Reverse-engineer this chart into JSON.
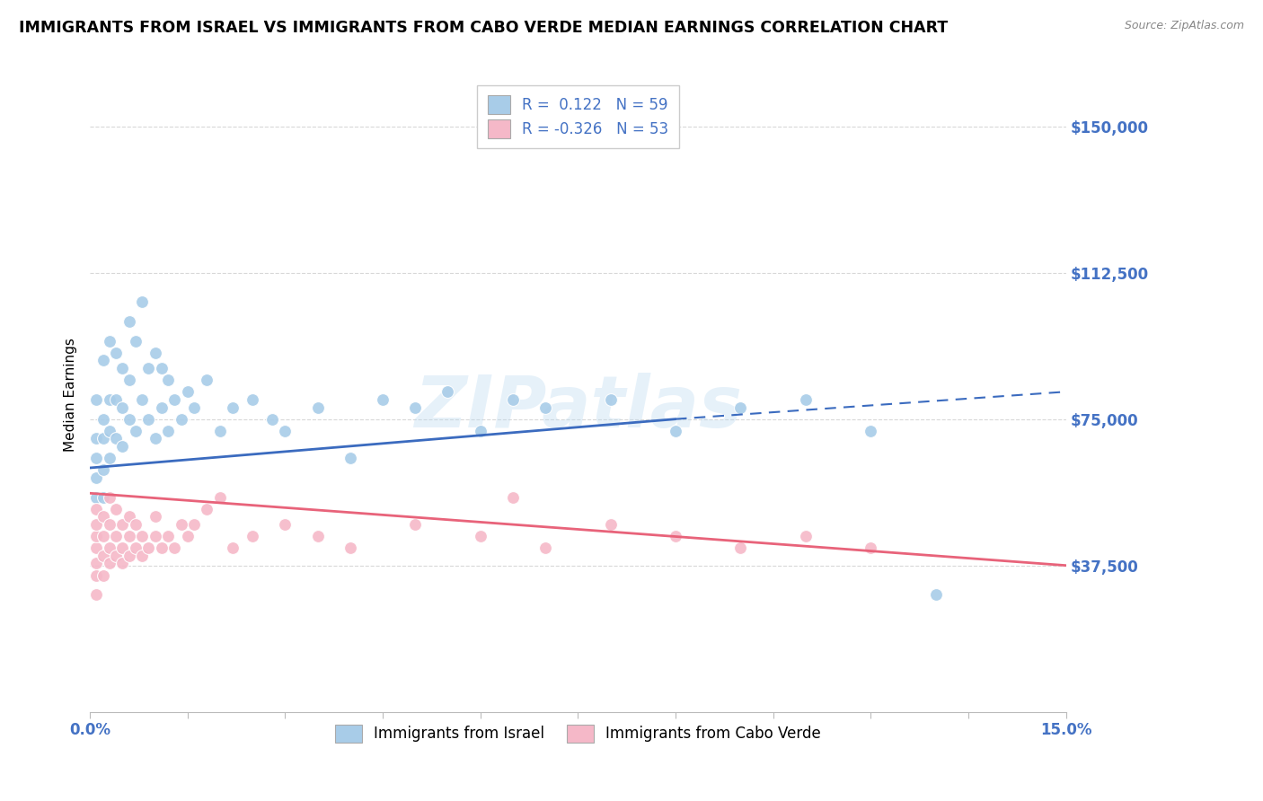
{
  "title": "IMMIGRANTS FROM ISRAEL VS IMMIGRANTS FROM CABO VERDE MEDIAN EARNINGS CORRELATION CHART",
  "source": "Source: ZipAtlas.com",
  "ylabel": "Median Earnings",
  "xlim": [
    0.0,
    0.15
  ],
  "ylim": [
    0,
    162500
  ],
  "ytick_values": [
    37500,
    75000,
    112500,
    150000
  ],
  "ytick_labels": [
    "$37,500",
    "$75,000",
    "$112,500",
    "$150,000"
  ],
  "watermark": "ZIPatlas",
  "series1_name": "Immigrants from Israel",
  "series1_color": "#a8cce8",
  "series1_line_color": "#3b6bbf",
  "series1_R": 0.122,
  "series1_N": 59,
  "series2_name": "Immigrants from Cabo Verde",
  "series2_color": "#f5b8c8",
  "series2_line_color": "#e8637a",
  "series2_R": -0.326,
  "series2_N": 53,
  "israel_x": [
    0.001,
    0.001,
    0.001,
    0.001,
    0.001,
    0.002,
    0.002,
    0.002,
    0.002,
    0.002,
    0.003,
    0.003,
    0.003,
    0.003,
    0.004,
    0.004,
    0.004,
    0.005,
    0.005,
    0.005,
    0.006,
    0.006,
    0.006,
    0.007,
    0.007,
    0.008,
    0.008,
    0.009,
    0.009,
    0.01,
    0.01,
    0.011,
    0.011,
    0.012,
    0.012,
    0.013,
    0.014,
    0.015,
    0.016,
    0.018,
    0.02,
    0.022,
    0.025,
    0.028,
    0.03,
    0.035,
    0.04,
    0.045,
    0.05,
    0.055,
    0.06,
    0.065,
    0.07,
    0.08,
    0.09,
    0.1,
    0.11,
    0.12,
    0.13
  ],
  "israel_y": [
    55000,
    60000,
    65000,
    70000,
    80000,
    55000,
    62000,
    70000,
    75000,
    90000,
    65000,
    72000,
    80000,
    95000,
    70000,
    80000,
    92000,
    68000,
    78000,
    88000,
    100000,
    75000,
    85000,
    72000,
    95000,
    80000,
    105000,
    75000,
    88000,
    70000,
    92000,
    78000,
    88000,
    72000,
    85000,
    80000,
    75000,
    82000,
    78000,
    85000,
    72000,
    78000,
    80000,
    75000,
    72000,
    78000,
    65000,
    80000,
    78000,
    82000,
    72000,
    80000,
    78000,
    80000,
    72000,
    78000,
    80000,
    72000,
    30000
  ],
  "caboverde_x": [
    0.001,
    0.001,
    0.001,
    0.001,
    0.001,
    0.001,
    0.001,
    0.002,
    0.002,
    0.002,
    0.002,
    0.003,
    0.003,
    0.003,
    0.003,
    0.004,
    0.004,
    0.004,
    0.005,
    0.005,
    0.005,
    0.006,
    0.006,
    0.006,
    0.007,
    0.007,
    0.008,
    0.008,
    0.009,
    0.01,
    0.01,
    0.011,
    0.012,
    0.013,
    0.014,
    0.015,
    0.016,
    0.018,
    0.02,
    0.022,
    0.025,
    0.03,
    0.035,
    0.04,
    0.05,
    0.06,
    0.065,
    0.07,
    0.08,
    0.09,
    0.1,
    0.11,
    0.12
  ],
  "caboverde_y": [
    30000,
    35000,
    38000,
    42000,
    45000,
    48000,
    52000,
    35000,
    40000,
    45000,
    50000,
    38000,
    42000,
    48000,
    55000,
    40000,
    45000,
    52000,
    38000,
    42000,
    48000,
    40000,
    45000,
    50000,
    42000,
    48000,
    40000,
    45000,
    42000,
    45000,
    50000,
    42000,
    45000,
    42000,
    48000,
    45000,
    48000,
    52000,
    55000,
    42000,
    45000,
    48000,
    45000,
    42000,
    48000,
    45000,
    55000,
    42000,
    48000,
    45000,
    42000,
    45000,
    42000
  ],
  "background_color": "#ffffff",
  "grid_color": "#d8d8d8",
  "axis_label_color": "#4472c4",
  "title_fontsize": 12.5,
  "label_fontsize": 11,
  "tick_fontsize": 12
}
